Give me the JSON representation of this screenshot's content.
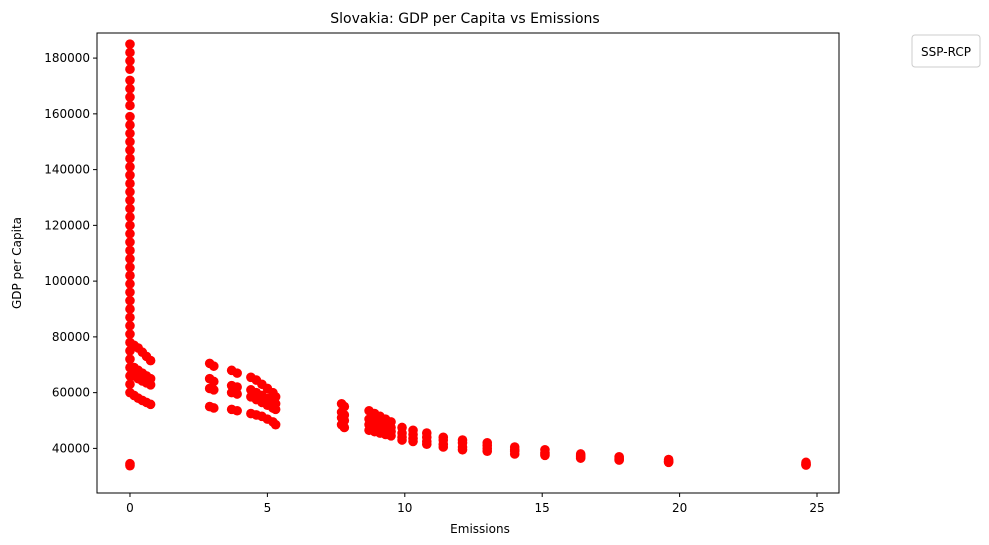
{
  "chart_data": {
    "type": "scatter",
    "title": "Slovakia: GDP per Capita vs Emissions",
    "xlabel": "Emissions",
    "ylabel": "GDP per Capita",
    "xlim": [
      -1.2,
      25.8
    ],
    "ylim": [
      24000,
      189000
    ],
    "xticks": [
      0,
      5,
      10,
      15,
      20,
      25
    ],
    "yticks": [
      40000,
      60000,
      80000,
      100000,
      120000,
      140000,
      160000,
      180000
    ],
    "grid": false,
    "legend": {
      "title": "SSP-RCP",
      "position": "outside-top-right",
      "entries": []
    },
    "marker_color": "#ff0000",
    "series": [
      {
        "name": "Slovakia",
        "points": [
          [
            0,
            185000
          ],
          [
            0,
            182000
          ],
          [
            0,
            179000
          ],
          [
            0,
            176000
          ],
          [
            0,
            172000
          ],
          [
            0,
            169000
          ],
          [
            0,
            166000
          ],
          [
            0,
            163000
          ],
          [
            0,
            159000
          ],
          [
            0,
            156000
          ],
          [
            0,
            153000
          ],
          [
            0,
            150000
          ],
          [
            0,
            147000
          ],
          [
            0,
            144000
          ],
          [
            0,
            141000
          ],
          [
            0,
            138000
          ],
          [
            0,
            135000
          ],
          [
            0,
            132000
          ],
          [
            0,
            129000
          ],
          [
            0,
            126000
          ],
          [
            0,
            123000
          ],
          [
            0,
            120000
          ],
          [
            0,
            117000
          ],
          [
            0,
            114000
          ],
          [
            0,
            111000
          ],
          [
            0,
            108000
          ],
          [
            0,
            105000
          ],
          [
            0,
            102000
          ],
          [
            0,
            99000
          ],
          [
            0,
            96000
          ],
          [
            0,
            93000
          ],
          [
            0,
            90000
          ],
          [
            0,
            87000
          ],
          [
            0,
            84000
          ],
          [
            0,
            81000
          ],
          [
            0,
            78000
          ],
          [
            0,
            75000
          ],
          [
            0,
            72000
          ],
          [
            0,
            69000
          ],
          [
            0,
            66000
          ],
          [
            0,
            63000
          ],
          [
            0,
            60000
          ],
          [
            0,
            34500
          ],
          [
            0,
            33800
          ],
          [
            0.15,
            77000
          ],
          [
            0.3,
            76000
          ],
          [
            0.45,
            74500
          ],
          [
            0.6,
            73000
          ],
          [
            0.75,
            71500
          ],
          [
            0.15,
            69000
          ],
          [
            0.3,
            68000
          ],
          [
            0.45,
            67000
          ],
          [
            0.6,
            66000
          ],
          [
            0.75,
            65000
          ],
          [
            0.15,
            66000
          ],
          [
            0.3,
            65000
          ],
          [
            0.45,
            64200
          ],
          [
            0.6,
            63500
          ],
          [
            0.75,
            62800
          ],
          [
            0.15,
            59000
          ],
          [
            0.3,
            58000
          ],
          [
            0.45,
            57200
          ],
          [
            0.6,
            56500
          ],
          [
            0.75,
            55800
          ],
          [
            2.9,
            70500
          ],
          [
            3.05,
            69500
          ],
          [
            3.7,
            68000
          ],
          [
            3.9,
            67000
          ],
          [
            2.9,
            65000
          ],
          [
            3.05,
            64000
          ],
          [
            3.7,
            62500
          ],
          [
            3.9,
            62000
          ],
          [
            2.9,
            61500
          ],
          [
            3.05,
            61000
          ],
          [
            3.7,
            60000
          ],
          [
            3.9,
            59500
          ],
          [
            2.9,
            55000
          ],
          [
            3.05,
            54500
          ],
          [
            3.7,
            54000
          ],
          [
            3.9,
            53500
          ],
          [
            4.4,
            65500
          ],
          [
            4.6,
            64500
          ],
          [
            4.8,
            63000
          ],
          [
            5.0,
            61500
          ],
          [
            5.2,
            60000
          ],
          [
            5.3,
            58500
          ],
          [
            4.4,
            61000
          ],
          [
            4.6,
            60000
          ],
          [
            4.8,
            59000
          ],
          [
            5.0,
            58000
          ],
          [
            5.2,
            57000
          ],
          [
            5.3,
            56000
          ],
          [
            4.4,
            58500
          ],
          [
            4.6,
            57500
          ],
          [
            4.8,
            56500
          ],
          [
            5.0,
            55500
          ],
          [
            5.2,
            54500
          ],
          [
            5.3,
            54000
          ],
          [
            4.4,
            52500
          ],
          [
            4.6,
            52000
          ],
          [
            4.8,
            51500
          ],
          [
            5.0,
            50500
          ],
          [
            5.2,
            49500
          ],
          [
            5.3,
            48500
          ],
          [
            7.7,
            56000
          ],
          [
            7.8,
            55000
          ],
          [
            7.7,
            53000
          ],
          [
            7.8,
            52000
          ],
          [
            7.7,
            51000
          ],
          [
            7.8,
            50000
          ],
          [
            7.7,
            48500
          ],
          [
            7.8,
            47500
          ],
          [
            8.7,
            53500
          ],
          [
            8.9,
            52500
          ],
          [
            9.1,
            51500
          ],
          [
            9.3,
            50500
          ],
          [
            9.5,
            49500
          ],
          [
            8.7,
            50500
          ],
          [
            8.9,
            50000
          ],
          [
            9.1,
            49000
          ],
          [
            9.3,
            48000
          ],
          [
            9.5,
            47500
          ],
          [
            8.7,
            48500
          ],
          [
            8.9,
            48000
          ],
          [
            9.1,
            47000
          ],
          [
            9.3,
            46500
          ],
          [
            9.5,
            46000
          ],
          [
            8.7,
            46500
          ],
          [
            8.9,
            46000
          ],
          [
            9.1,
            45500
          ],
          [
            9.3,
            45000
          ],
          [
            9.5,
            44500
          ],
          [
            9.9,
            47500
          ],
          [
            10.3,
            46500
          ],
          [
            10.8,
            45500
          ],
          [
            11.4,
            44000
          ],
          [
            12.1,
            43000
          ],
          [
            9.9,
            45500
          ],
          [
            10.3,
            45000
          ],
          [
            10.8,
            44000
          ],
          [
            11.4,
            43000
          ],
          [
            12.1,
            42000
          ],
          [
            9.9,
            44000
          ],
          [
            10.3,
            43500
          ],
          [
            10.8,
            42500
          ],
          [
            11.4,
            41500
          ],
          [
            12.1,
            40500
          ],
          [
            9.9,
            43000
          ],
          [
            10.3,
            42500
          ],
          [
            10.8,
            41500
          ],
          [
            11.4,
            40500
          ],
          [
            12.1,
            39500
          ],
          [
            13.0,
            42000
          ],
          [
            14.0,
            40500
          ],
          [
            15.1,
            39500
          ],
          [
            16.4,
            38000
          ],
          [
            17.8,
            37000
          ],
          [
            19.6,
            36000
          ],
          [
            24.6,
            35000
          ],
          [
            13.0,
            41000
          ],
          [
            14.0,
            39500
          ],
          [
            15.1,
            38500
          ],
          [
            16.4,
            37500
          ],
          [
            17.8,
            36500
          ],
          [
            19.6,
            35500
          ],
          [
            24.6,
            34500
          ],
          [
            13.0,
            40000
          ],
          [
            14.0,
            39000
          ],
          [
            15.1,
            38000
          ],
          [
            16.4,
            37000
          ],
          [
            17.8,
            36000
          ],
          [
            19.6,
            35200
          ],
          [
            24.6,
            34200
          ],
          [
            13.0,
            39000
          ],
          [
            14.0,
            38000
          ],
          [
            15.1,
            37500
          ],
          [
            16.4,
            36500
          ],
          [
            17.8,
            35800
          ],
          [
            19.6,
            35000
          ],
          [
            24.6,
            34000
          ]
        ]
      }
    ]
  }
}
